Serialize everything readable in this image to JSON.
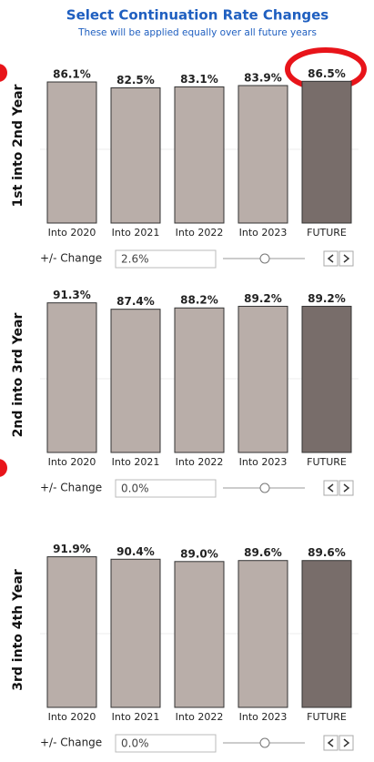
{
  "header": {
    "title": "Select Continuation Rate Changes",
    "subtitle": "These will be applied equally over all future years"
  },
  "chart_data": [
    {
      "type": "bar",
      "y_label": "1st into 2nd Year",
      "categories": [
        "Into 2020",
        "Into 2021",
        "Into 2022",
        "Into 2023",
        "FUTURE"
      ],
      "values": [
        86.1,
        82.5,
        83.1,
        83.9,
        86.5
      ],
      "value_labels": [
        "86.1%",
        "82.5%",
        "83.1%",
        "83.9%",
        "86.5%"
      ],
      "colors": [
        "#b9aea9",
        "#b9aea9",
        "#b9aea9",
        "#b9aea9",
        "#786d6a"
      ],
      "ylim": [
        0,
        100
      ]
    },
    {
      "type": "bar",
      "y_label": "2nd into 3rd Year",
      "categories": [
        "Into 2020",
        "Into 2021",
        "Into 2022",
        "Into 2023",
        "FUTURE"
      ],
      "values": [
        91.3,
        87.4,
        88.2,
        89.2,
        89.2
      ],
      "value_labels": [
        "91.3%",
        "87.4%",
        "88.2%",
        "89.2%",
        "89.2%"
      ],
      "colors": [
        "#b9aea9",
        "#b9aea9",
        "#b9aea9",
        "#b9aea9",
        "#786d6a"
      ],
      "ylim": [
        0,
        100
      ]
    },
    {
      "type": "bar",
      "y_label": "3rd into 4th Year",
      "categories": [
        "Into 2020",
        "Into 2021",
        "Into 2022",
        "Into 2023",
        "FUTURE"
      ],
      "values": [
        91.9,
        90.4,
        89.0,
        89.6,
        89.6
      ],
      "value_labels": [
        "91.9%",
        "90.4%",
        "89.0%",
        "89.6%",
        "89.6%"
      ],
      "colors": [
        "#b9aea9",
        "#b9aea9",
        "#b9aea9",
        "#b9aea9",
        "#786d6a"
      ],
      "ylim": [
        0,
        100
      ]
    }
  ],
  "controls": [
    {
      "label": "+/- Change",
      "value": "2.6%"
    },
    {
      "label": "+/- Change",
      "value": "0.0%"
    },
    {
      "label": "+/- Change",
      "value": "0.0%"
    }
  ]
}
